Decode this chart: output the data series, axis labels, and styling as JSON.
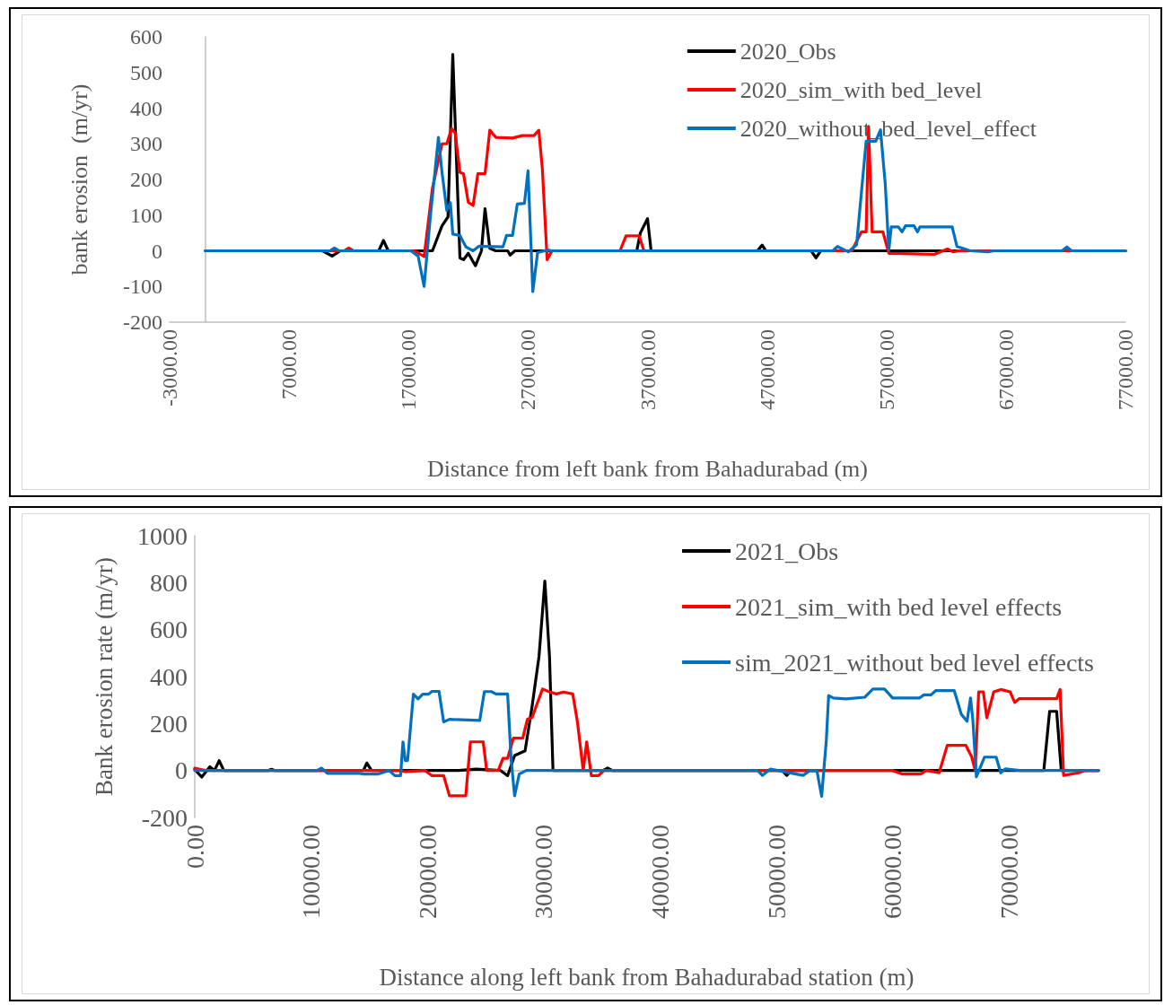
{
  "chart_data": [
    {
      "type": "line",
      "xlabel": "Distance from left bank from Bahadurabad (m)",
      "ylabel": "bank erosion  (m/yr)",
      "xlim": [
        -3000,
        77000
      ],
      "xticks": [
        {
          "value": -3000,
          "label": "-3000.00"
        },
        {
          "value": 7000,
          "label": "7000.00"
        },
        {
          "value": 17000,
          "label": "17000.00"
        },
        {
          "value": 27000,
          "label": "27000.00"
        },
        {
          "value": 37000,
          "label": "37000.00"
        },
        {
          "value": 47000,
          "label": "47000.00"
        },
        {
          "value": 57000,
          "label": "57000.00"
        },
        {
          "value": 67000,
          "label": "67000.00"
        },
        {
          "value": 77000,
          "label": "77000.00"
        }
      ],
      "ylim": [
        -200,
        600
      ],
      "yticks": [
        -200,
        -100,
        0,
        100,
        200,
        300,
        400,
        500,
        600
      ],
      "grid": false,
      "legend": "top right",
      "marker": "none",
      "line_style": "solid",
      "series": [
        {
          "name": "2020_Obs",
          "color": "#000000",
          "x": [
            0,
            9800,
            10600,
            11300,
            14500,
            14900,
            15300,
            19000,
            19800,
            20300,
            20700,
            21300,
            21600,
            22000,
            22600,
            23100,
            23400,
            23800,
            24300,
            25300,
            25500,
            25900,
            36100,
            36400,
            37000,
            37300,
            46200,
            46600,
            46900,
            50700,
            51100,
            51500,
            77000
          ],
          "values": [
            0,
            0,
            -15,
            0,
            0,
            29,
            0,
            0,
            70,
            95,
            551,
            -20,
            -25,
            -7,
            -42,
            0,
            118,
            7,
            0,
            0,
            -12,
            0,
            0,
            50,
            90,
            0,
            0,
            16,
            0,
            0,
            -20,
            0,
            0
          ]
        },
        {
          "name": "2020_sim_with bed_level",
          "color": "#ff0000",
          "x": [
            0,
            11600,
            12000,
            12400,
            17500,
            18300,
            19000,
            19800,
            20200,
            20600,
            20900,
            21300,
            21600,
            22000,
            22400,
            22800,
            23400,
            23800,
            24300,
            25700,
            26500,
            27500,
            27900,
            28200,
            28600,
            29000,
            34700,
            35200,
            36300,
            36700,
            54100,
            54900,
            55300,
            55500,
            55800,
            56700,
            57200,
            61000,
            62100,
            62600,
            63000,
            77000
          ],
          "values": [
            0,
            0,
            8,
            0,
            0,
            -16,
            176,
            300,
            300,
            343,
            330,
            220,
            216,
            136,
            127,
            216,
            216,
            338,
            318,
            316,
            323,
            323,
            338,
            229,
            -25,
            0,
            0,
            42,
            42,
            0,
            0,
            53,
            53,
            349,
            53,
            53,
            -7,
            -10,
            5,
            -3,
            0,
            0
          ]
        },
        {
          "name": "2020_without_bed_level_effect",
          "color": "#0070c0",
          "x": [
            0,
            10400,
            10800,
            11200,
            17200,
            17800,
            18300,
            18800,
            19500,
            19800,
            20200,
            20500,
            20700,
            21300,
            21800,
            22400,
            22900,
            24900,
            25200,
            25700,
            26100,
            26700,
            27000,
            27400,
            27800,
            28600,
            29000,
            52500,
            52900,
            53800,
            54500,
            55300,
            56100,
            56500,
            56900,
            57200,
            57400,
            58000,
            58300,
            58600,
            59300,
            59600,
            59800,
            62500,
            62900,
            63400,
            64000,
            65500,
            66000,
            71700,
            72100,
            72500,
            77000
          ],
          "values": [
            0,
            0,
            8,
            0,
            0,
            -15,
            -100,
            87,
            318,
            220,
            113,
            135,
            47,
            43,
            11,
            0,
            13,
            11,
            43,
            43,
            131,
            133,
            224,
            -114,
            -5,
            2,
            0,
            0,
            12,
            -3,
            17,
            307,
            307,
            339,
            187,
            2,
            67,
            67,
            53,
            70,
            70,
            53,
            67,
            67,
            12,
            7,
            0,
            -3,
            0,
            0,
            11,
            0,
            0
          ]
        }
      ]
    },
    {
      "type": "line",
      "xlabel": "Distance along left bank from Bahadurabad station (m)",
      "ylabel": "Bank erosion rate (m/yr)",
      "xlim": [
        0,
        77700
      ],
      "xticks": [
        {
          "value": 0,
          "label": "0.00"
        },
        {
          "value": 10000,
          "label": "10000.00"
        },
        {
          "value": 20000,
          "label": "20000.00"
        },
        {
          "value": 30000,
          "label": "30000.00"
        },
        {
          "value": 40000,
          "label": "40000.00"
        },
        {
          "value": 50000,
          "label": "50000.00"
        },
        {
          "value": 60000,
          "label": "60000.00"
        },
        {
          "value": 70000,
          "label": "70000.00"
        }
      ],
      "ylim": [
        -200,
        1000
      ],
      "yticks": [
        -200,
        0,
        200,
        400,
        600,
        800,
        1000
      ],
      "grid": false,
      "legend": "top right",
      "marker": "none",
      "line_style": "solid",
      "series": [
        {
          "name": "2021_Obs",
          "color": "#000000",
          "x": [
            0,
            600,
            1300,
            1700,
            2100,
            2500,
            6300,
            6600,
            6900,
            14500,
            14800,
            15200,
            22700,
            24200,
            26300,
            26900,
            27500,
            28400,
            29000,
            29600,
            30100,
            30500,
            30800,
            35100,
            35500,
            35900,
            50500,
            50900,
            51300,
            73000,
            73500,
            74100,
            74500,
            77700
          ],
          "values": [
            5,
            -28,
            16,
            0,
            42,
            0,
            0,
            5,
            0,
            0,
            32,
            0,
            0,
            6,
            0,
            -22,
            64,
            84,
            272,
            486,
            807,
            486,
            0,
            0,
            10,
            0,
            0,
            -21,
            0,
            0,
            252,
            252,
            0,
            0
          ]
        },
        {
          "name": "2021_sim_with bed level effects",
          "color": "#ff0000",
          "x": [
            0,
            900,
            17500,
            18100,
            19800,
            20400,
            21400,
            21900,
            23300,
            23700,
            24800,
            25100,
            26100,
            26500,
            26900,
            27400,
            28200,
            28600,
            29000,
            29900,
            30400,
            31100,
            31700,
            32500,
            32900,
            33400,
            33700,
            34100,
            34700,
            35200,
            60000,
            60800,
            62400,
            62900,
            64000,
            64700,
            66300,
            66800,
            67100,
            67400,
            67800,
            68100,
            68700,
            69300,
            70100,
            70500,
            70900,
            74100,
            74400,
            74700,
            76000,
            76500,
            77700
          ],
          "values": [
            10,
            0,
            0,
            -5,
            0,
            -22,
            -22,
            -108,
            -108,
            122,
            122,
            0,
            0,
            52,
            52,
            138,
            138,
            218,
            225,
            347,
            337,
            326,
            334,
            326,
            208,
            0,
            122,
            -22,
            -22,
            0,
            0,
            -15,
            -15,
            0,
            -10,
            107,
            107,
            58,
            0,
            335,
            335,
            225,
            335,
            345,
            335,
            290,
            306,
            306,
            345,
            -21,
            -10,
            0,
            0
          ]
        },
        {
          "name": "sim_2021_without bed level effects",
          "color": "#0070c0",
          "x": [
            0,
            10500,
            10900,
            11400,
            14200,
            14500,
            15800,
            16700,
            17200,
            17700,
            17900,
            18100,
            18300,
            18800,
            19200,
            19600,
            20100,
            20400,
            21000,
            21400,
            21900,
            24500,
            24900,
            25500,
            25900,
            26900,
            27200,
            27500,
            27900,
            28500,
            48400,
            48800,
            49500,
            52300,
            52900,
            53500,
            53900,
            54300,
            54500,
            54900,
            56000,
            57600,
            58300,
            59300,
            60000,
            62300,
            62700,
            63300,
            63700,
            65300,
            65900,
            66400,
            66700,
            66900,
            67200,
            67900,
            68900,
            69300,
            69700,
            70900,
            77700
          ],
          "values": [
            0,
            0,
            10,
            -12,
            -12,
            -15,
            -15,
            0,
            -22,
            -22,
            122,
            42,
            42,
            325,
            305,
            325,
            325,
            337,
            337,
            207,
            218,
            213,
            336,
            336,
            326,
            326,
            48,
            -108,
            -15,
            0,
            0,
            -21,
            6,
            -21,
            0,
            -3,
            -110,
            129,
            319,
            309,
            305,
            312,
            347,
            347,
            309,
            309,
            322,
            322,
            340,
            340,
            240,
            210,
            309,
            214,
            -27,
            57,
            57,
            -10,
            7,
            0,
            0
          ]
        }
      ]
    }
  ]
}
